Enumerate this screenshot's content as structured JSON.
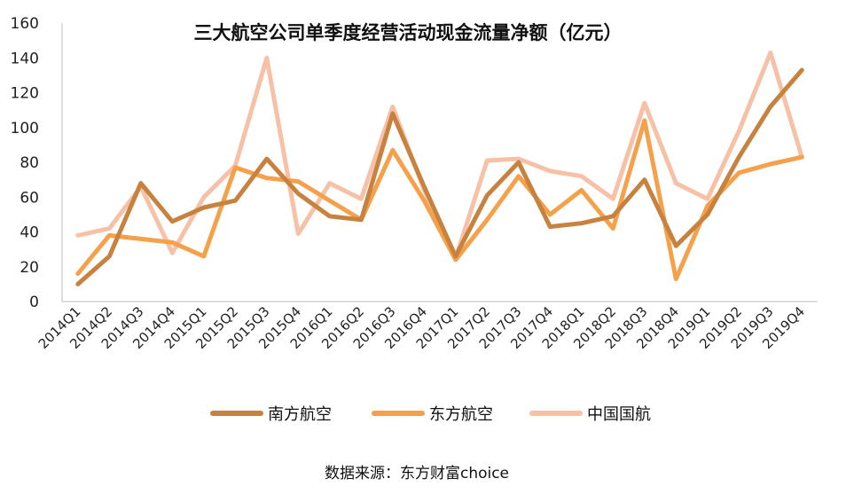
{
  "chart_data": {
    "type": "line",
    "title": "三大航空公司单季度经营活动现金流量净额（亿元）",
    "source": "数据来源：东方财富choice",
    "ylim": [
      0,
      160
    ],
    "yticks": [
      0,
      20,
      40,
      60,
      80,
      100,
      120,
      140,
      160
    ],
    "grid": false,
    "legend_position": "bottom",
    "categories": [
      "2014Q1",
      "2014Q2",
      "2014Q3",
      "2014Q4",
      "2015Q1",
      "2015Q2",
      "2015Q3",
      "2015Q4",
      "2016Q1",
      "2016Q2",
      "2016Q3",
      "2016Q4",
      "2017Q1",
      "2017Q2",
      "2017Q3",
      "2017Q4",
      "2018Q1",
      "2018Q2",
      "2018Q3",
      "2018Q4",
      "2019Q1",
      "2019Q2",
      "2019Q3",
      "2019Q4"
    ],
    "series": [
      {
        "name": "南方航空",
        "color": "#c8823f",
        "values": [
          10,
          26,
          68,
          46,
          54,
          58,
          82,
          62,
          49,
          47,
          108,
          66,
          26,
          61,
          80,
          43,
          45,
          49,
          70,
          32,
          50,
          83,
          112,
          133
        ]
      },
      {
        "name": "东方航空",
        "color": "#f5a04a",
        "values": [
          16,
          38,
          36,
          34,
          26,
          77,
          71,
          69,
          58,
          47,
          87,
          58,
          24,
          47,
          72,
          50,
          64,
          42,
          104,
          13,
          55,
          74,
          79,
          83
        ]
      },
      {
        "name": "中国国航",
        "color": "#f6c1a6",
        "values": [
          38,
          42,
          66,
          28,
          60,
          78,
          140,
          39,
          68,
          59,
          112,
          64,
          25,
          81,
          82,
          75,
          72,
          59,
          114,
          68,
          59,
          98,
          143,
          83
        ]
      }
    ]
  }
}
